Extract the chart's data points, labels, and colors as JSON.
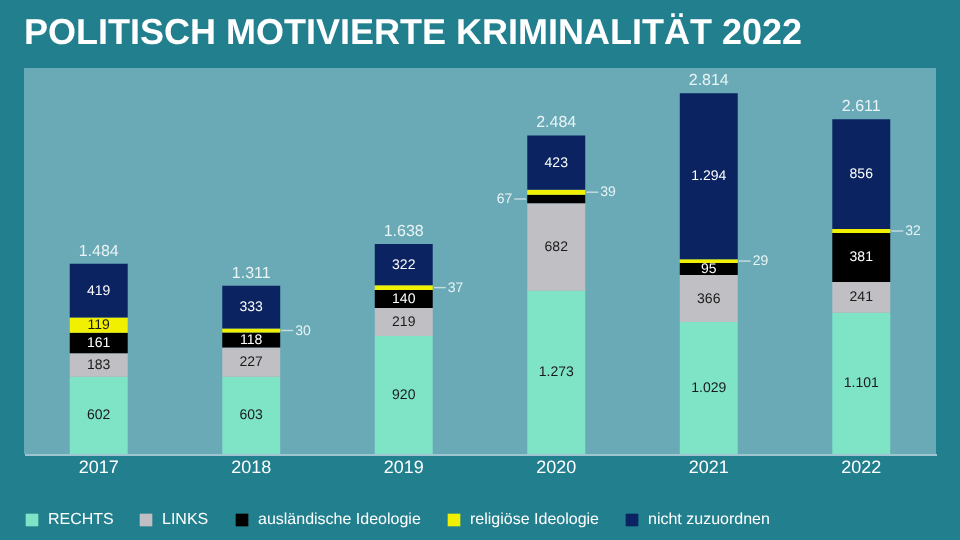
{
  "chart_data": {
    "type": "bar",
    "title": "POLITISCH MOTIVIERTE KRIMINALITÄT 2022",
    "categories": [
      "2017",
      "2018",
      "2019",
      "2020",
      "2021",
      "2022"
    ],
    "stacked": true,
    "data_labels": true,
    "legend": "bottom",
    "grid": false,
    "tick_labels": "x",
    "totals": [
      "1.484",
      "1.311",
      "1.638",
      "2.484",
      "2.814",
      "2.611"
    ],
    "series": [
      {
        "name": "RECHTS",
        "color": "#7fe3c6",
        "values": [
          602,
          603,
          920,
          1273,
          1029,
          1101
        ],
        "value_labels": [
          "602",
          "603",
          "920",
          "1.273",
          "1.029",
          "1.101"
        ]
      },
      {
        "name": "LINKS",
        "color": "#c0c0c4",
        "values": [
          183,
          227,
          219,
          682,
          366,
          241
        ]
      },
      {
        "name": "ausländische Ideologie",
        "color": "#000000",
        "values": [
          161,
          118,
          140,
          67,
          95,
          381
        ]
      },
      {
        "name": "religiöse Ideologie",
        "color": "#f0f000",
        "values": [
          119,
          30,
          37,
          39,
          29,
          32
        ]
      },
      {
        "name": "nicht zuzuordnen",
        "color": "#0b2360",
        "values": [
          419,
          333,
          322,
          423,
          1294,
          856
        ],
        "value_labels": [
          "419",
          "333",
          "322",
          "423",
          "1.294",
          "856"
        ]
      }
    ]
  }
}
